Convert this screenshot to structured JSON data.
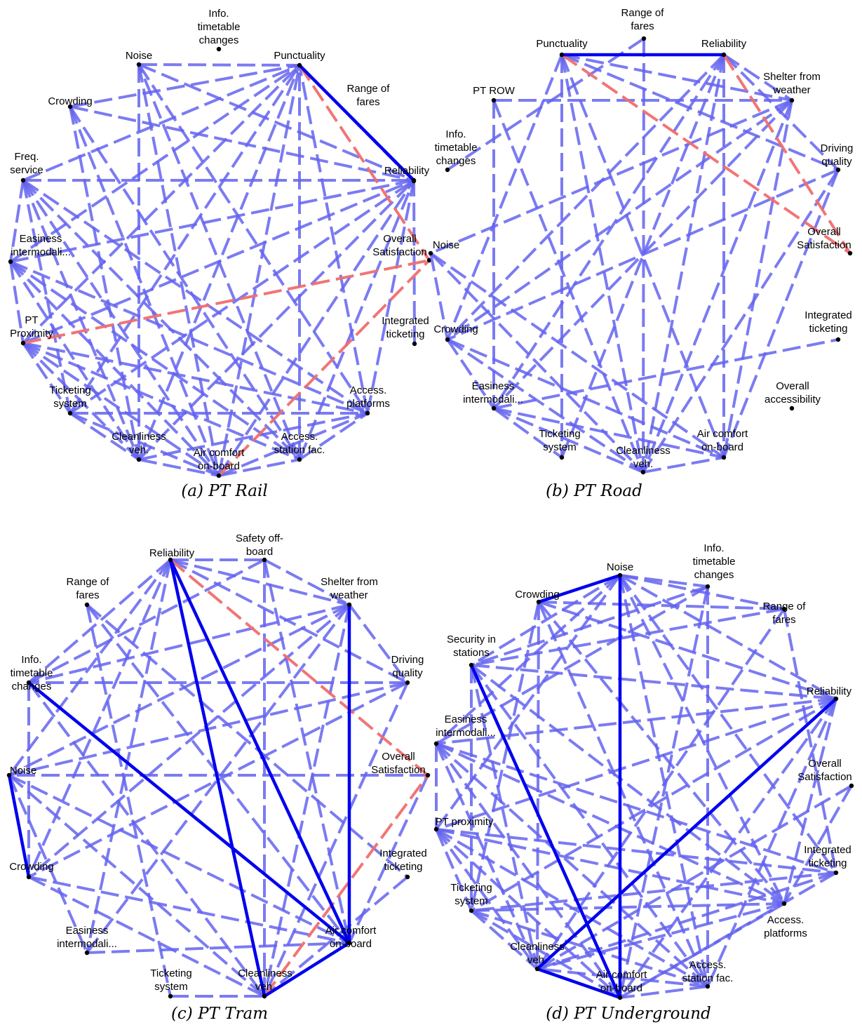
{
  "colors": {
    "positive": "#6464f0",
    "positive_strong": "#0000ee",
    "negative": "#f06e6e",
    "node": "#000000",
    "background": "#ffffff"
  },
  "panels": [
    {
      "id": "rail",
      "caption": "(a) PT Rail",
      "nodes": [
        {
          "id": "info",
          "label": "Info.\ntimetable\nchanges"
        },
        {
          "id": "noise",
          "label": "Noise"
        },
        {
          "id": "punct",
          "label": "Punctuality"
        },
        {
          "id": "range",
          "label": "Range of\nfares"
        },
        {
          "id": "crowd",
          "label": "Crowding"
        },
        {
          "id": "freq",
          "label": "Freq.\nservice"
        },
        {
          "id": "rel",
          "label": "Reliability"
        },
        {
          "id": "eas",
          "label": "Easiness\nintermodali..."
        },
        {
          "id": "overall",
          "label": "Overall\nSatisfaction"
        },
        {
          "id": "prox",
          "label": "PT\nProximity"
        },
        {
          "id": "integ",
          "label": "Integrated\nticketing"
        },
        {
          "id": "tick",
          "label": "Ticketing\nsystem"
        },
        {
          "id": "platf",
          "label": "Access.\nplatforms"
        },
        {
          "id": "clean",
          "label": "Cleanliness\nveh."
        },
        {
          "id": "air",
          "label": "Air comfort\non-board"
        },
        {
          "id": "stat",
          "label": "Access.\nstation fac."
        }
      ],
      "edges": [
        [
          "punct",
          "rel",
          "strong"
        ],
        [
          "punct",
          "overall",
          "neg"
        ],
        [
          "prox",
          "overall",
          "neg"
        ],
        [
          "air",
          "overall",
          "neg"
        ],
        [
          "noise",
          "punct"
        ],
        [
          "noise",
          "rel"
        ],
        [
          "noise",
          "clean"
        ],
        [
          "noise",
          "air"
        ],
        [
          "noise",
          "platf"
        ],
        [
          "crowd",
          "punct"
        ],
        [
          "crowd",
          "rel"
        ],
        [
          "crowd",
          "clean"
        ],
        [
          "crowd",
          "air"
        ],
        [
          "crowd",
          "stat"
        ],
        [
          "freq",
          "punct"
        ],
        [
          "freq",
          "rel"
        ],
        [
          "freq",
          "tick"
        ],
        [
          "freq",
          "clean"
        ],
        [
          "freq",
          "air"
        ],
        [
          "freq",
          "stat"
        ],
        [
          "freq",
          "platf"
        ],
        [
          "freq",
          "eas"
        ],
        [
          "eas",
          "rel"
        ],
        [
          "eas",
          "punct"
        ],
        [
          "eas",
          "air"
        ],
        [
          "eas",
          "clean"
        ],
        [
          "eas",
          "stat"
        ],
        [
          "eas",
          "prox"
        ],
        [
          "eas",
          "platf"
        ],
        [
          "prox",
          "rel"
        ],
        [
          "prox",
          "punct"
        ],
        [
          "prox",
          "tick"
        ],
        [
          "prox",
          "clean"
        ],
        [
          "prox",
          "air"
        ],
        [
          "prox",
          "stat"
        ],
        [
          "prox",
          "platf"
        ],
        [
          "tick",
          "rel"
        ],
        [
          "tick",
          "clean"
        ],
        [
          "tick",
          "air"
        ],
        [
          "tick",
          "platf"
        ],
        [
          "tick",
          "punct"
        ],
        [
          "clean",
          "rel"
        ],
        [
          "clean",
          "air"
        ],
        [
          "clean",
          "punct"
        ],
        [
          "clean",
          "platf"
        ],
        [
          "air",
          "rel"
        ],
        [
          "air",
          "punct"
        ],
        [
          "air",
          "stat"
        ],
        [
          "air",
          "platf"
        ],
        [
          "stat",
          "rel"
        ],
        [
          "stat",
          "punct"
        ],
        [
          "stat",
          "platf"
        ],
        [
          "stat",
          "noise"
        ],
        [
          "platf",
          "rel"
        ],
        [
          "platf",
          "punct"
        ],
        [
          "range",
          "punct"
        ],
        [
          "integ",
          "rel"
        ]
      ]
    },
    {
      "id": "road",
      "caption": "(b) PT Road",
      "nodes": [
        {
          "id": "range",
          "label": "Range of\nfares"
        },
        {
          "id": "punct",
          "label": "Punctuality"
        },
        {
          "id": "rel",
          "label": "Reliability"
        },
        {
          "id": "shelter",
          "label": "Shelter from\nweather"
        },
        {
          "id": "row",
          "label": "PT ROW"
        },
        {
          "id": "info",
          "label": "Info.\ntimetable\nchanges"
        },
        {
          "id": "driving",
          "label": "Driving\nquality"
        },
        {
          "id": "overall",
          "label": "Overall\nSatisfaction"
        },
        {
          "id": "noise",
          "label": "Noise"
        },
        {
          "id": "integ",
          "label": "Integrated\nticketing"
        },
        {
          "id": "crowd",
          "label": "Crowding"
        },
        {
          "id": "eas",
          "label": "Easiness\nintermodali..."
        },
        {
          "id": "access",
          "label": "Overall\naccessibility"
        },
        {
          "id": "tick",
          "label": "Ticketing\nsystem"
        },
        {
          "id": "clean",
          "label": "Cleanliness\nveh."
        },
        {
          "id": "air",
          "label": "Air comfort\non-board"
        }
      ],
      "edges": [
        [
          "punct",
          "rel",
          "strong"
        ],
        [
          "punct",
          "overall",
          "neg"
        ],
        [
          "rel",
          "overall",
          "neg"
        ],
        [
          "punct",
          "shelter"
        ],
        [
          "punct",
          "driving"
        ],
        [
          "punct",
          "clean"
        ],
        [
          "punct",
          "air"
        ],
        [
          "punct",
          "tick"
        ],
        [
          "punct",
          "crowd"
        ],
        [
          "rel",
          "shelter"
        ],
        [
          "rel",
          "driving"
        ],
        [
          "rel",
          "clean"
        ],
        [
          "rel",
          "air"
        ],
        [
          "rel",
          "eas"
        ],
        [
          "rel",
          "crowd"
        ],
        [
          "range",
          "clean"
        ],
        [
          "range",
          "info"
        ],
        [
          "row",
          "shelter"
        ],
        [
          "row",
          "eas"
        ],
        [
          "row",
          "clean"
        ],
        [
          "shelter",
          "noise"
        ],
        [
          "shelter",
          "eas"
        ],
        [
          "shelter",
          "crowd"
        ],
        [
          "shelter",
          "clean"
        ],
        [
          "shelter",
          "air"
        ],
        [
          "driving",
          "clean"
        ],
        [
          "driving",
          "air"
        ],
        [
          "driving",
          "crowd"
        ],
        [
          "noise",
          "clean"
        ],
        [
          "noise",
          "air"
        ],
        [
          "noise",
          "crowd"
        ],
        [
          "crowd",
          "clean"
        ],
        [
          "crowd",
          "air"
        ],
        [
          "crowd",
          "eas"
        ],
        [
          "eas",
          "integ"
        ],
        [
          "eas",
          "tick"
        ],
        [
          "eas",
          "clean"
        ],
        [
          "eas",
          "air"
        ],
        [
          "clean",
          "air"
        ],
        [
          "tick",
          "rel"
        ]
      ]
    },
    {
      "id": "tram",
      "caption": "(c) PT Tram",
      "nodes": [
        {
          "id": "rel",
          "label": "Reliability"
        },
        {
          "id": "safety",
          "label": "Safety off-\nboard"
        },
        {
          "id": "range",
          "label": "Range of\nfares"
        },
        {
          "id": "shelter",
          "label": "Shelter from\nweather"
        },
        {
          "id": "info",
          "label": "Info.\ntimetable\nchanges"
        },
        {
          "id": "driving",
          "label": "Driving\nquality"
        },
        {
          "id": "overall",
          "label": "Overall\nSatisfaction"
        },
        {
          "id": "noise",
          "label": "Noise"
        },
        {
          "id": "integ",
          "label": "Integrated\nticketing"
        },
        {
          "id": "crowd",
          "label": "Crowding"
        },
        {
          "id": "air",
          "label": "Air comfort\non-board"
        },
        {
          "id": "eas",
          "label": "Easiness\nintermodali..."
        },
        {
          "id": "tick",
          "label": "Ticketing\nsystem"
        },
        {
          "id": "clean",
          "label": "Cleanliness\nveh."
        }
      ],
      "edges": [
        [
          "rel",
          "clean",
          "strong"
        ],
        [
          "rel",
          "air",
          "strong"
        ],
        [
          "info",
          "air",
          "strong"
        ],
        [
          "shelter",
          "air",
          "strong"
        ],
        [
          "noise",
          "crowd",
          "strong"
        ],
        [
          "clean",
          "air",
          "strong"
        ],
        [
          "rel",
          "overall",
          "neg"
        ],
        [
          "clean",
          "overall",
          "neg"
        ],
        [
          "rel",
          "safety"
        ],
        [
          "rel",
          "shelter"
        ],
        [
          "rel",
          "driving"
        ],
        [
          "rel",
          "info"
        ],
        [
          "rel",
          "noise"
        ],
        [
          "rel",
          "crowd"
        ],
        [
          "rel",
          "eas"
        ],
        [
          "safety",
          "shelter"
        ],
        [
          "safety",
          "clean"
        ],
        [
          "safety",
          "air"
        ],
        [
          "safety",
          "info"
        ],
        [
          "shelter",
          "info"
        ],
        [
          "shelter",
          "noise"
        ],
        [
          "shelter",
          "crowd"
        ],
        [
          "shelter",
          "clean"
        ],
        [
          "shelter",
          "driving"
        ],
        [
          "shelter",
          "eas"
        ],
        [
          "range",
          "tick"
        ],
        [
          "range",
          "air"
        ],
        [
          "range",
          "integ"
        ],
        [
          "driving",
          "noise"
        ],
        [
          "driving",
          "crowd"
        ],
        [
          "driving",
          "clean"
        ],
        [
          "driving",
          "info"
        ],
        [
          "overall",
          "air"
        ],
        [
          "overall",
          "noise"
        ],
        [
          "info",
          "clean"
        ],
        [
          "info",
          "crowd"
        ],
        [
          "noise",
          "air"
        ],
        [
          "noise",
          "clean"
        ],
        [
          "noise",
          "eas"
        ],
        [
          "crowd",
          "clean"
        ],
        [
          "crowd",
          "air"
        ],
        [
          "eas",
          "air"
        ],
        [
          "tick",
          "clean"
        ],
        [
          "integ",
          "clean"
        ]
      ]
    },
    {
      "id": "underground",
      "caption": "(d) PT Underground",
      "nodes": [
        {
          "id": "noise",
          "label": "Noise"
        },
        {
          "id": "info",
          "label": "Info.\ntimetable\nchanges"
        },
        {
          "id": "crowd",
          "label": "Crowding"
        },
        {
          "id": "range",
          "label": "Range of\nfares"
        },
        {
          "id": "sec",
          "label": "Security in\nstations"
        },
        {
          "id": "rel",
          "label": "Reliability"
        },
        {
          "id": "eas",
          "label": "Easiness\nintermodali..."
        },
        {
          "id": "overall",
          "label": "Overall\nSatisfaction"
        },
        {
          "id": "prox",
          "label": "PT proximity"
        },
        {
          "id": "integ",
          "label": "Integrated\nticketing"
        },
        {
          "id": "tick",
          "label": "Ticketing\nsystem"
        },
        {
          "id": "platf",
          "label": "Access.\nplatforms"
        },
        {
          "id": "clean",
          "label": "Cleanliness\nveh."
        },
        {
          "id": "stat",
          "label": "Access.\nstation fac."
        },
        {
          "id": "air",
          "label": "Air comfort\non-board"
        }
      ],
      "edges": [
        [
          "noise",
          "crowd",
          "strong"
        ],
        [
          "noise",
          "air",
          "strong"
        ],
        [
          "sec",
          "air",
          "strong"
        ],
        [
          "rel",
          "clean",
          "strong"
        ],
        [
          "clean",
          "air",
          "strong"
        ],
        [
          "noise",
          "info"
        ],
        [
          "noise",
          "range"
        ],
        [
          "noise",
          "rel"
        ],
        [
          "noise",
          "sec"
        ],
        [
          "noise",
          "eas"
        ],
        [
          "noise",
          "platf"
        ],
        [
          "noise",
          "stat"
        ],
        [
          "noise",
          "integ"
        ],
        [
          "noise",
          "prox"
        ],
        [
          "crowd",
          "rel"
        ],
        [
          "crowd",
          "range"
        ],
        [
          "crowd",
          "clean"
        ],
        [
          "crowd",
          "stat"
        ],
        [
          "crowd",
          "platf"
        ],
        [
          "crowd",
          "tick"
        ],
        [
          "info",
          "sec"
        ],
        [
          "info",
          "stat"
        ],
        [
          "info",
          "eas"
        ],
        [
          "info",
          "air"
        ],
        [
          "range",
          "sec"
        ],
        [
          "range",
          "integ"
        ],
        [
          "range",
          "clean"
        ],
        [
          "sec",
          "rel"
        ],
        [
          "sec",
          "tick"
        ],
        [
          "sec",
          "platf"
        ],
        [
          "sec",
          "stat"
        ],
        [
          "sec",
          "clean"
        ],
        [
          "rel",
          "eas"
        ],
        [
          "rel",
          "prox"
        ],
        [
          "rel",
          "tick"
        ],
        [
          "rel",
          "air"
        ],
        [
          "rel",
          "platf"
        ],
        [
          "rel",
          "stat"
        ],
        [
          "eas",
          "integ"
        ],
        [
          "eas",
          "platf"
        ],
        [
          "eas",
          "stat"
        ],
        [
          "eas",
          "clean"
        ],
        [
          "eas",
          "air"
        ],
        [
          "eas",
          "prox"
        ],
        [
          "overall",
          "platf"
        ],
        [
          "overall",
          "clean"
        ],
        [
          "prox",
          "integ"
        ],
        [
          "prox",
          "platf"
        ],
        [
          "prox",
          "stat"
        ],
        [
          "prox",
          "clean"
        ],
        [
          "prox",
          "air"
        ],
        [
          "prox",
          "tick"
        ],
        [
          "integ",
          "tick"
        ],
        [
          "integ",
          "clean"
        ],
        [
          "integ",
          "air"
        ],
        [
          "tick",
          "platf"
        ],
        [
          "tick",
          "stat"
        ],
        [
          "tick",
          "clean"
        ],
        [
          "tick",
          "air"
        ],
        [
          "platf",
          "air"
        ],
        [
          "platf",
          "clean"
        ],
        [
          "stat",
          "air"
        ],
        [
          "stat",
          "clean"
        ]
      ]
    }
  ]
}
